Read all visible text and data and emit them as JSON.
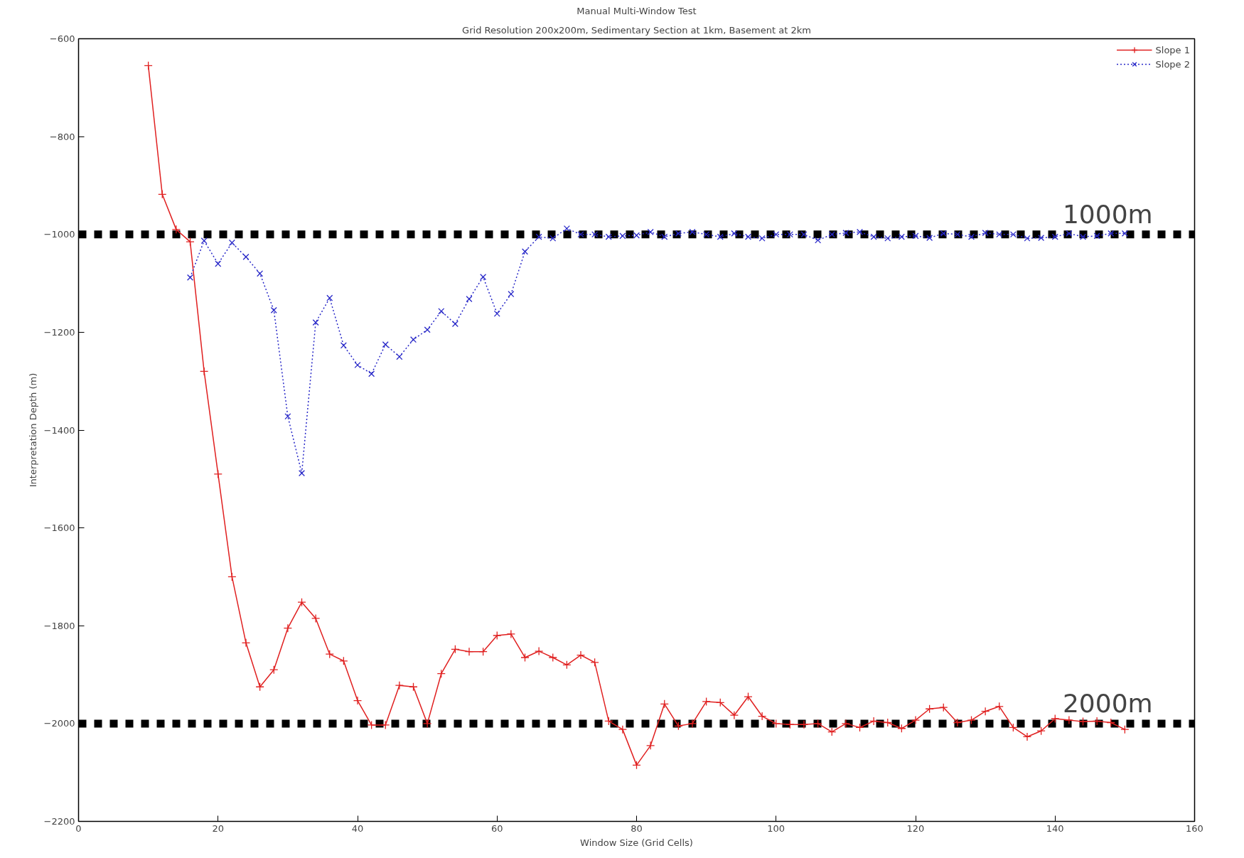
{
  "chart_data": {
    "type": "line",
    "title": "Manual Multi-Window Test",
    "subtitle": "Grid Resolution 200x200m, Sedimentary Section at 1km, Basement at 2km",
    "xlabel": "Window Size (Grid Cells)",
    "ylabel": "Interpretation Depth (m)",
    "xlim": [
      0,
      160
    ],
    "xticks": [
      0,
      20,
      40,
      60,
      80,
      100,
      120,
      140,
      160
    ],
    "ylim": [
      -2200,
      -600
    ],
    "yticks": [
      -2200,
      -2000,
      -1800,
      -1600,
      -1400,
      -1200,
      -1000,
      -800,
      -600
    ],
    "grid": false,
    "legend": "top right",
    "series": [
      {
        "name": "Slope 1",
        "color": "#e02020",
        "marker": "cross",
        "line_style": "solid",
        "x": [
          10,
          12,
          14,
          16,
          18,
          20,
          22,
          24,
          26,
          28,
          30,
          32,
          34,
          36,
          38,
          40,
          42,
          44,
          46,
          48,
          50,
          52,
          54,
          56,
          58,
          60,
          62,
          64,
          66,
          68,
          70,
          72,
          74,
          76,
          78,
          80,
          82,
          84,
          86,
          88,
          90,
          92,
          94,
          96,
          98,
          100,
          102,
          104,
          106,
          108,
          110,
          112,
          114,
          116,
          118,
          120,
          122,
          124,
          126,
          128,
          130,
          132,
          134,
          136,
          138,
          140,
          142,
          144,
          146,
          148,
          150
        ],
        "values": [
          -655,
          -918,
          -990,
          -1015,
          -1280,
          -1490,
          -1700,
          -1835,
          -1925,
          -1890,
          -1805,
          -1752,
          -1785,
          -1858,
          -1872,
          -1953,
          -2003,
          -2003,
          -1922,
          -1925,
          -2000,
          -1898,
          -1848,
          -1853,
          -1853,
          -1820,
          -1817,
          -1865,
          -1852,
          -1865,
          -1880,
          -1860,
          -1875,
          -1995,
          -2012,
          -2085,
          -2045,
          -1960,
          -2005,
          -2000,
          -1955,
          -1957,
          -1983,
          -1945,
          -1985,
          -2000,
          -2002,
          -2002,
          -2000,
          -2017,
          -2000,
          -2008,
          -1995,
          -1998,
          -2010,
          -1993,
          -1970,
          -1967,
          -1998,
          -1993,
          -1975,
          -1965,
          -2008,
          -2027,
          -2015,
          -1990,
          -1993,
          -1996,
          -1995,
          -1998,
          -2012
        ]
      },
      {
        "name": "Slope 2",
        "color": "#2828c8",
        "marker": "x",
        "line_style": "dotted",
        "x": [
          16,
          18,
          20,
          22,
          24,
          26,
          28,
          30,
          32,
          34,
          36,
          38,
          40,
          42,
          44,
          46,
          48,
          50,
          52,
          54,
          56,
          58,
          60,
          62,
          64,
          66,
          68,
          70,
          72,
          74,
          76,
          78,
          80,
          82,
          84,
          86,
          88,
          90,
          92,
          94,
          96,
          98,
          100,
          102,
          104,
          106,
          108,
          110,
          112,
          114,
          116,
          118,
          120,
          122,
          124,
          126,
          128,
          130,
          132,
          134,
          136,
          138,
          140,
          142,
          144,
          146,
          148,
          150
        ],
        "values": [
          -1088,
          -1013,
          -1060,
          -1017,
          -1046,
          -1080,
          -1155,
          -1372,
          -1488,
          -1180,
          -1130,
          -1227,
          -1267,
          -1285,
          -1225,
          -1250,
          -1215,
          -1195,
          -1157,
          -1183,
          -1132,
          -1087,
          -1162,
          -1122,
          -1035,
          -1005,
          -1008,
          -988,
          -1000,
          -1000,
          -1005,
          -1003,
          -1002,
          -995,
          -1005,
          -998,
          -995,
          -1000,
          -1005,
          -998,
          -1005,
          -1008,
          -1000,
          -1000,
          -1000,
          -1012,
          -1000,
          -997,
          -995,
          -1005,
          -1008,
          -1005,
          -1003,
          -1007,
          -998,
          -1000,
          -1005,
          -997,
          -1000,
          -1000,
          -1008,
          -1007,
          -1005,
          -998,
          -1005,
          -1003,
          -998,
          -998
        ]
      }
    ],
    "ref_lines": [
      {
        "axis": "y",
        "value": -1000,
        "label": "1000m",
        "color": "#000000",
        "line_style": "dashed"
      },
      {
        "axis": "y",
        "value": -2000,
        "label": "2000m",
        "color": "#000000",
        "line_style": "dashed"
      }
    ]
  }
}
